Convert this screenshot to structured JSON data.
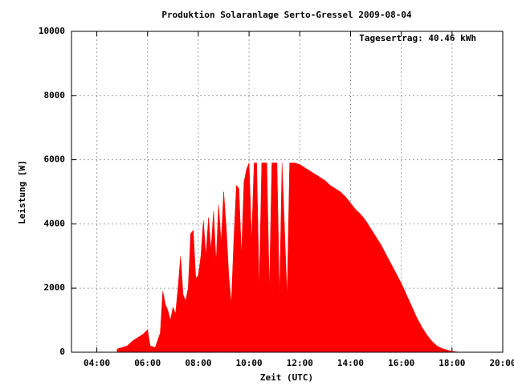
{
  "chart_data": {
    "type": "area",
    "title": "Produktion Solaranlage Serto-Gressel 2009-08-04",
    "annotation": "Tagesertrag: 40.46 kWh",
    "x_label": "Zeit (UTC)",
    "y_label": "Leistung [W]",
    "color": "#ff0000",
    "grid": true,
    "xlim": [
      3,
      20
    ],
    "ylim": [
      0,
      10000
    ],
    "xticks": [
      {
        "value": 4,
        "label": "04:00"
      },
      {
        "value": 6,
        "label": "06:00"
      },
      {
        "value": 8,
        "label": "08:00"
      },
      {
        "value": 10,
        "label": "10:00"
      },
      {
        "value": 12,
        "label": "12:00"
      },
      {
        "value": 14,
        "label": "14:00"
      },
      {
        "value": 16,
        "label": "16:00"
      },
      {
        "value": 18,
        "label": "18:00"
      },
      {
        "value": 20,
        "label": "20:00"
      }
    ],
    "yticks": [
      0,
      2000,
      4000,
      6000,
      8000,
      10000
    ],
    "x": [
      4.8,
      5.0,
      5.2,
      5.4,
      5.6,
      5.8,
      6.0,
      6.1,
      6.3,
      6.5,
      6.6,
      6.7,
      6.8,
      6.9,
      7.0,
      7.1,
      7.2,
      7.3,
      7.4,
      7.5,
      7.6,
      7.7,
      7.8,
      7.9,
      8.0,
      8.1,
      8.2,
      8.3,
      8.4,
      8.5,
      8.6,
      8.7,
      8.8,
      8.9,
      9.0,
      9.1,
      9.2,
      9.3,
      9.4,
      9.5,
      9.6,
      9.7,
      9.8,
      9.9,
      10.0,
      10.1,
      10.2,
      10.3,
      10.4,
      10.5,
      10.6,
      10.7,
      10.8,
      10.9,
      11.0,
      11.1,
      11.2,
      11.3,
      11.5,
      11.6,
      11.8,
      12.0,
      12.2,
      12.4,
      12.6,
      12.8,
      13.0,
      13.2,
      13.4,
      13.6,
      13.8,
      14.0,
      14.2,
      14.4,
      14.6,
      14.8,
      15.0,
      15.2,
      15.4,
      15.6,
      15.8,
      16.0,
      16.2,
      16.4,
      16.6,
      16.8,
      17.0,
      17.2,
      17.4,
      17.6,
      17.8,
      18.0,
      18.2
    ],
    "values": [
      100,
      150,
      200,
      350,
      450,
      550,
      700,
      200,
      150,
      600,
      1900,
      1500,
      1300,
      1000,
      1400,
      1200,
      2000,
      3000,
      1800,
      1600,
      2000,
      3700,
      3800,
      2300,
      2400,
      3000,
      4100,
      3000,
      4200,
      3200,
      4400,
      2800,
      4600,
      3400,
      5000,
      3900,
      2400,
      1500,
      3500,
      5200,
      5100,
      3000,
      5300,
      5700,
      5900,
      3500,
      5900,
      5900,
      2000,
      5900,
      5900,
      5900,
      1900,
      5900,
      5900,
      5900,
      1700,
      5900,
      1700,
      5900,
      5900,
      5850,
      5750,
      5650,
      5550,
      5450,
      5350,
      5200,
      5100,
      5000,
      4850,
      4650,
      4450,
      4300,
      4100,
      3850,
      3600,
      3350,
      3050,
      2750,
      2450,
      2150,
      1800,
      1450,
      1100,
      800,
      550,
      350,
      200,
      120,
      70,
      30,
      10
    ]
  }
}
